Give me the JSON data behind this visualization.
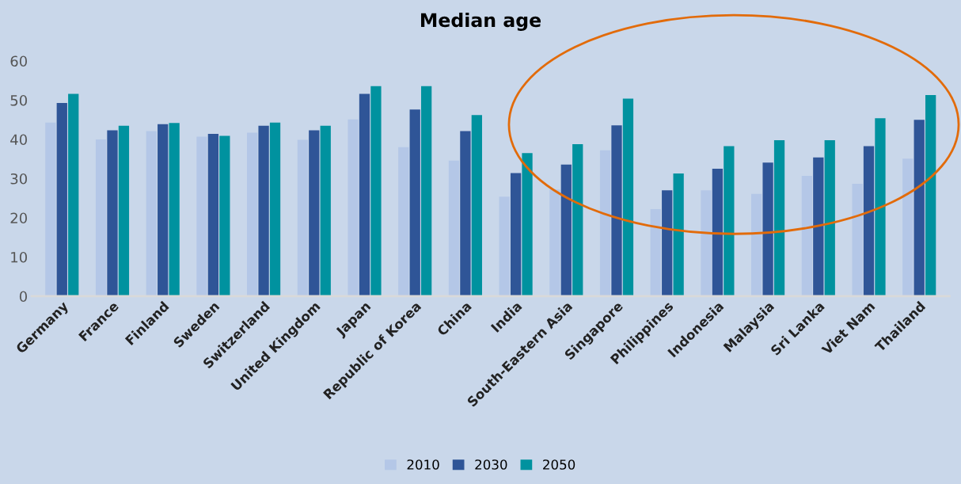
{
  "chart_data": {
    "type": "bar",
    "title": "Median age",
    "categories": [
      "Germany",
      "France",
      "Finland",
      "Sweden",
      "Switzerland",
      "United Kingdom",
      "Japan",
      "Republic of Korea",
      "China",
      "India",
      "South-Eastern Asia",
      "Singapore",
      "Philippines",
      "Indonesia",
      "Malaysia",
      "Sri Lanka",
      "Viet Nam",
      "Thailand"
    ],
    "series": [
      {
        "name": "2010",
        "color": "#b4c7e7",
        "values": [
          44.3,
          40.0,
          42.1,
          40.7,
          41.7,
          39.9,
          45.1,
          38.0,
          34.6,
          25.4,
          27.2,
          37.2,
          22.2,
          27.0,
          26.1,
          30.7,
          28.7,
          35.1
        ]
      },
      {
        "name": "2030",
        "color": "#2f5597",
        "values": [
          49.3,
          42.3,
          43.9,
          41.4,
          43.5,
          42.3,
          51.6,
          47.6,
          42.1,
          31.4,
          33.6,
          43.6,
          27.0,
          32.5,
          34.1,
          35.4,
          38.3,
          45.0
        ]
      },
      {
        "name": "2050",
        "color": "#00929f",
        "values": [
          51.6,
          43.5,
          44.2,
          40.9,
          44.3,
          43.5,
          53.6,
          53.6,
          46.2,
          36.5,
          38.8,
          50.4,
          31.3,
          38.3,
          39.8,
          39.8,
          45.4,
          51.3
        ]
      }
    ],
    "ylim": [
      0,
      60
    ],
    "yticks": [
      0,
      10,
      20,
      30,
      40,
      50,
      60
    ],
    "grid": false,
    "legend": "bottom"
  }
}
